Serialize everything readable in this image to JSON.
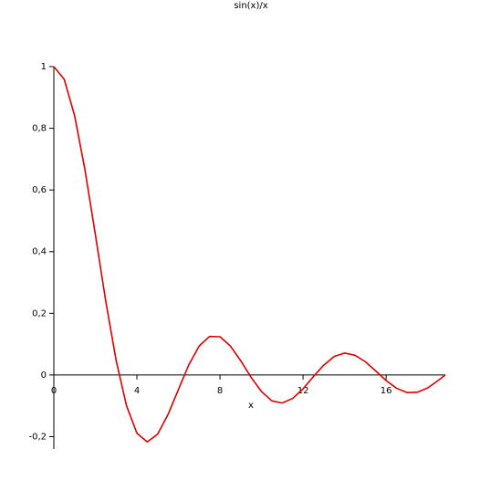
{
  "chart_data": {
    "type": "line",
    "title": "sin(x)/x",
    "x_label": "x",
    "x": [
      0,
      0.5,
      1,
      1.5,
      2,
      2.5,
      3,
      3.5,
      4,
      4.5,
      5,
      5.5,
      6,
      6.5,
      7,
      7.5,
      8,
      8.5,
      9,
      9.5,
      10,
      10.5,
      11,
      11.5,
      12,
      12.5,
      13,
      13.5,
      14,
      14.5,
      15,
      15.5,
      16,
      16.5,
      17,
      17.5,
      18,
      18.5,
      18.85
    ],
    "values": [
      1,
      0.959,
      0.841,
      0.665,
      0.455,
      0.239,
      0.047,
      -0.1,
      -0.189,
      -0.217,
      -0.192,
      -0.128,
      -0.047,
      0.033,
      0.094,
      0.125,
      0.124,
      0.094,
      0.046,
      -0.008,
      -0.054,
      -0.084,
      -0.091,
      -0.076,
      -0.045,
      -0.005,
      0.032,
      0.06,
      0.071,
      0.064,
      0.043,
      0.013,
      -0.018,
      -0.043,
      -0.057,
      -0.056,
      -0.042,
      -0.018,
      0
    ],
    "color": "#dd0000",
    "xlim": [
      0,
      18.85
    ],
    "ylim": [
      -0.24,
      1
    ],
    "xticks": [
      0,
      4,
      8,
      12,
      16
    ],
    "yticks": [
      {
        "value": -0.2,
        "label": "-0,2"
      },
      0,
      {
        "value": 0.2,
        "label": "0,2"
      },
      {
        "value": 0.4,
        "label": "0,4"
      },
      {
        "value": 0.6,
        "label": "0,6"
      },
      {
        "value": 0.8,
        "label": "0,8"
      },
      1
    ]
  }
}
